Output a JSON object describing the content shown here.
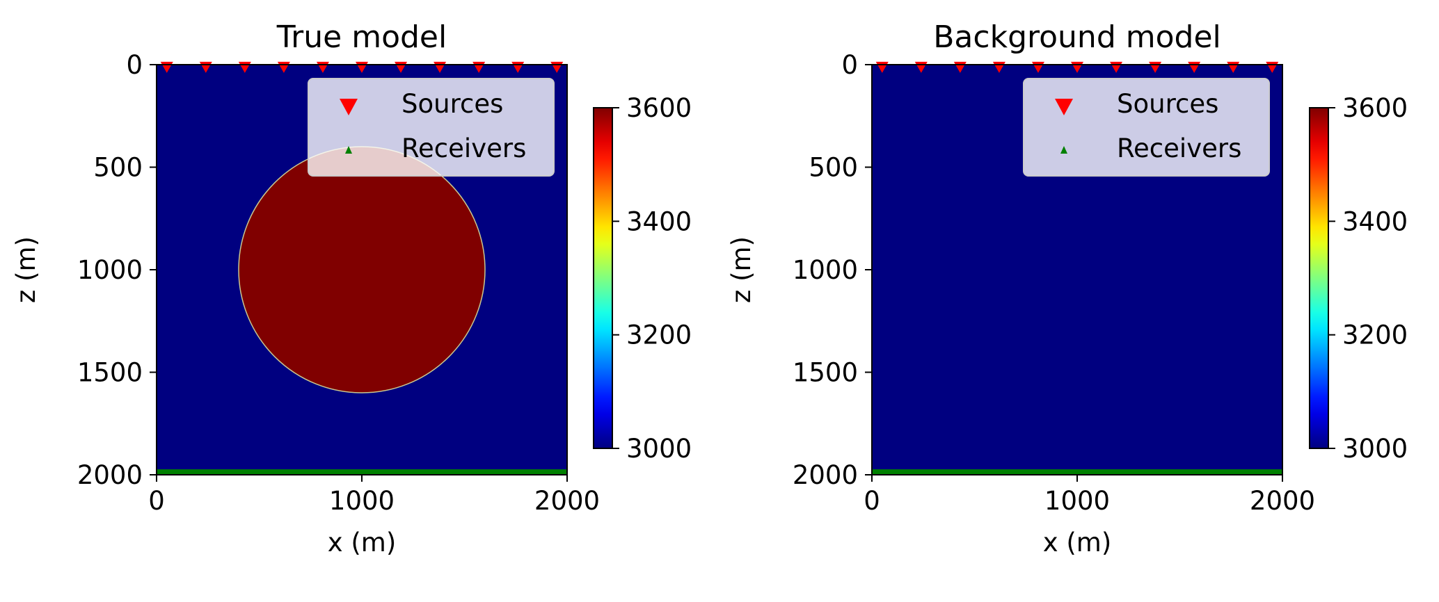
{
  "chart_data": [
    {
      "type": "heatmap",
      "title": "True model",
      "xlabel": "x (m)",
      "ylabel": "z (m)",
      "xlim": [
        0,
        2000
      ],
      "ylim": [
        2000,
        0
      ],
      "xticks": [
        "0",
        "1000",
        "2000"
      ],
      "yticks": [
        "0",
        "500",
        "1000",
        "1500",
        "2000"
      ],
      "colorbar": {
        "range": [
          3000,
          3600
        ],
        "ticks": [
          "3000",
          "3200",
          "3400",
          "3600"
        ],
        "colormap": "jet"
      },
      "background_value": 3000,
      "anomaly": {
        "shape": "circle",
        "center_x": 1000,
        "center_z": 1000,
        "radius": 600,
        "value": 3600
      },
      "sources": {
        "label": "Sources",
        "color": "#ff0000",
        "z": 20,
        "x": [
          50,
          240,
          430,
          620,
          810,
          1000,
          1190,
          1380,
          1570,
          1760,
          1950
        ]
      },
      "receivers": {
        "label": "Receivers",
        "color": "#008000",
        "z": 1985,
        "x_range": [
          0,
          2000
        ]
      },
      "legend": "top-right",
      "grid": false
    },
    {
      "type": "heatmap",
      "title": "Background model",
      "xlabel": "x (m)",
      "ylabel": "z (m)",
      "xlim": [
        0,
        2000
      ],
      "ylim": [
        2000,
        0
      ],
      "xticks": [
        "0",
        "1000",
        "2000"
      ],
      "yticks": [
        "0",
        "500",
        "1000",
        "1500",
        "2000"
      ],
      "colorbar": {
        "range": [
          3000,
          3600
        ],
        "ticks": [
          "3000",
          "3200",
          "3400",
          "3600"
        ],
        "colormap": "jet"
      },
      "background_value": 3000,
      "anomaly": null,
      "sources": {
        "label": "Sources",
        "color": "#ff0000",
        "z": 20,
        "x": [
          50,
          240,
          430,
          620,
          810,
          1000,
          1190,
          1380,
          1570,
          1760,
          1950
        ]
      },
      "receivers": {
        "label": "Receivers",
        "color": "#008000",
        "z": 1985,
        "x_range": [
          0,
          2000
        ]
      },
      "legend": "top-right",
      "grid": false
    }
  ]
}
